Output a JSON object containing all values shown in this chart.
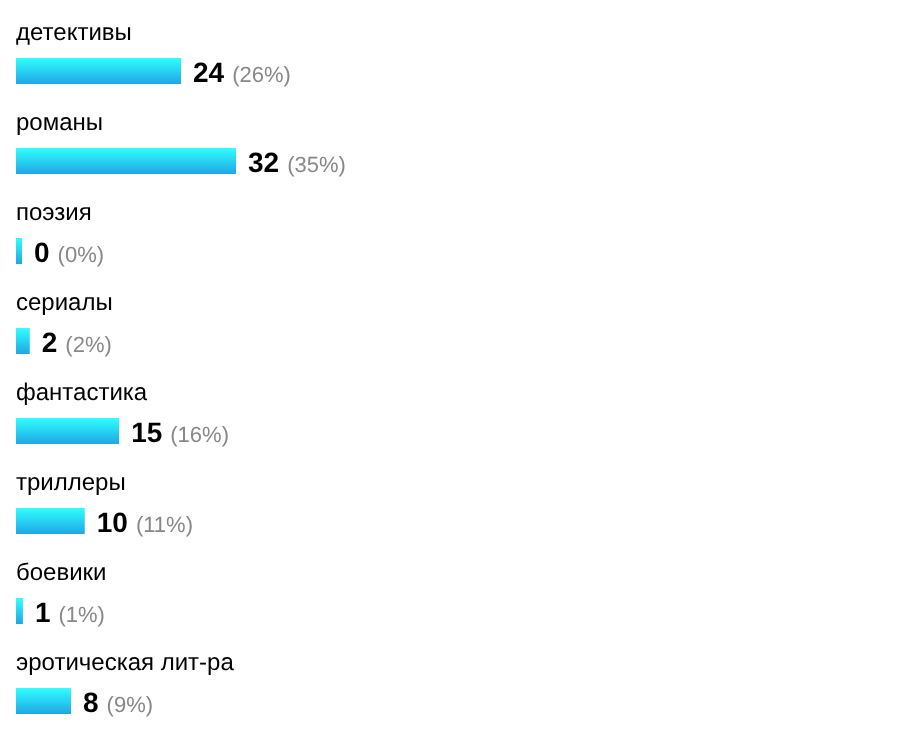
{
  "chart_data": {
    "type": "bar",
    "orientation": "horizontal",
    "categories": [
      "детективы",
      "романы",
      "поэзия",
      "сериалы",
      "фантастика",
      "триллеры",
      "боевики",
      "эротическая лит-ра"
    ],
    "values": [
      24,
      32,
      0,
      2,
      15,
      10,
      1,
      8
    ],
    "value_labels": [
      "24 (26%)",
      "32 (35%)",
      "0 (0%)",
      "2 (2%)",
      "15 (16%)",
      "10 (11%)",
      "1 (1%)",
      "8 (9%)"
    ],
    "color": "#1fa6e3"
  }
}
